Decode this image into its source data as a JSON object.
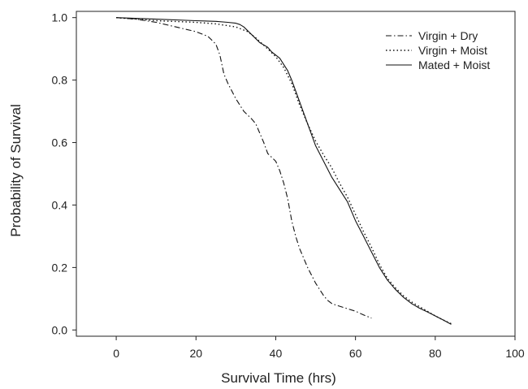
{
  "chart_data": {
    "type": "line",
    "xlabel": "Survival Time (hrs)",
    "ylabel": "Probability of Survival",
    "xlim": [
      -10,
      100
    ],
    "ylim": [
      -0.02,
      1.02
    ],
    "xticks": [
      "0",
      "20",
      "40",
      "60",
      "80",
      "100"
    ],
    "yticks": [
      "0.0",
      "0.2",
      "0.4",
      "0.6",
      "0.8",
      "1.0"
    ],
    "grid": false,
    "legend_position": "top-right",
    "series": [
      {
        "name": "Virgin + Dry",
        "style": "dashdot",
        "x": [
          0,
          5,
          10,
          15,
          20,
          23,
          25,
          26,
          27,
          28,
          30,
          32,
          34,
          35,
          36,
          37,
          38,
          40,
          41,
          42,
          43,
          44,
          45,
          46,
          48,
          50,
          52,
          53,
          54,
          55,
          57,
          60,
          62,
          64
        ],
        "y": [
          1.0,
          0.995,
          0.985,
          0.97,
          0.955,
          0.94,
          0.915,
          0.88,
          0.82,
          0.79,
          0.74,
          0.7,
          0.675,
          0.66,
          0.63,
          0.6,
          0.565,
          0.54,
          0.51,
          0.47,
          0.42,
          0.35,
          0.3,
          0.26,
          0.2,
          0.15,
          0.11,
          0.095,
          0.085,
          0.08,
          0.072,
          0.06,
          0.048,
          0.038
        ]
      },
      {
        "name": "Virgin + Moist",
        "style": "dotted",
        "x": [
          0,
          10,
          20,
          25,
          30,
          33,
          35,
          38,
          40,
          42,
          44,
          46,
          48,
          50,
          52,
          54,
          56,
          58,
          60,
          62,
          64,
          66,
          68,
          70,
          72,
          74,
          76,
          78,
          80,
          82,
          84
        ],
        "y": [
          1.0,
          0.99,
          0.985,
          0.98,
          0.97,
          0.955,
          0.935,
          0.9,
          0.875,
          0.84,
          0.79,
          0.72,
          0.66,
          0.605,
          0.56,
          0.52,
          0.47,
          0.425,
          0.37,
          0.315,
          0.265,
          0.21,
          0.165,
          0.135,
          0.11,
          0.09,
          0.075,
          0.06,
          0.045,
          0.032,
          0.02
        ]
      },
      {
        "name": "Mated + Moist",
        "style": "solid",
        "x": [
          0,
          10,
          20,
          25,
          28,
          30,
          31,
          32,
          34,
          36,
          38,
          39,
          40,
          41,
          42,
          43,
          44,
          46,
          48,
          50,
          52,
          54,
          56,
          57,
          58,
          60,
          62,
          64,
          66,
          68,
          70,
          72,
          74,
          76,
          78,
          80,
          82,
          84
        ],
        "y": [
          1.0,
          0.995,
          0.99,
          0.988,
          0.985,
          0.982,
          0.978,
          0.97,
          0.945,
          0.92,
          0.905,
          0.89,
          0.88,
          0.87,
          0.85,
          0.83,
          0.8,
          0.73,
          0.66,
          0.59,
          0.54,
          0.49,
          0.45,
          0.43,
          0.41,
          0.35,
          0.3,
          0.25,
          0.2,
          0.16,
          0.13,
          0.105,
          0.085,
          0.07,
          0.058,
          0.045,
          0.032,
          0.018
        ]
      }
    ]
  }
}
